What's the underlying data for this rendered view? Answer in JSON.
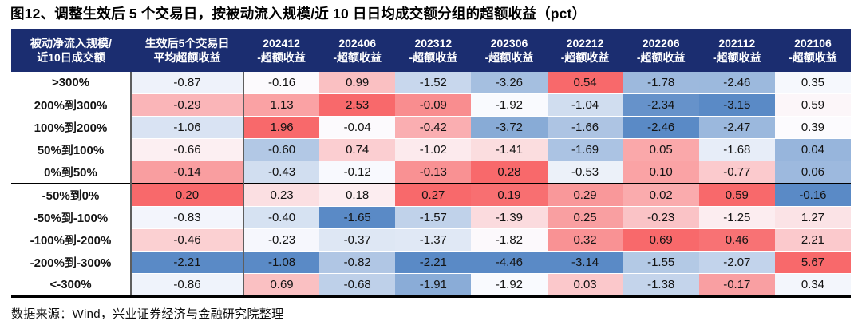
{
  "figure": {
    "title": "图12、调整生效后 5 个交易日，按被动流入规模/近 10 日日均成交额分组的超额收益（pct）",
    "source": "数据来源：Wind，兴业证券经济与金融研究院整理"
  },
  "colors": {
    "header_bg": "#1B2D70",
    "header_text": "#FFFFFF",
    "heatmap_min_color": "#5A8AC6",
    "heatmap_mid_color": "#FCFCFF",
    "heatmap_max_color": "#F8696B",
    "divider_color": "#000000",
    "title_rule_color": "#B5B5B5"
  },
  "chart_data": {
    "type": "heatmap",
    "title": "调整生效后5个交易日，按被动流入规模/近10日日均成交额分组的超额收益（pct）",
    "row_header": {
      "line1": "被动净流入规模/",
      "line2": "近10日成交额"
    },
    "columns": [
      {
        "line1": "生效后5个交易日",
        "line2": "平均超额收益"
      },
      {
        "line1": "202412",
        "line2": "-超额收益"
      },
      {
        "line1": "202406",
        "line2": "-超额收益"
      },
      {
        "line1": "202312",
        "line2": "-超额收益"
      },
      {
        "line1": "202306",
        "line2": "-超额收益"
      },
      {
        "line1": "202212",
        "line2": "-超额收益"
      },
      {
        "line1": "202206",
        "line2": "-超额收益"
      },
      {
        "line1": "202112",
        "line2": "-超额收益"
      },
      {
        "line1": "202106",
        "line2": "-超额收益"
      }
    ],
    "rows": [
      {
        "label": ">300%",
        "values": [
          -0.87,
          -0.16,
          0.99,
          -1.52,
          -3.26,
          0.54,
          -1.78,
          -2.46,
          0.35
        ]
      },
      {
        "label": "200%到300%",
        "values": [
          -0.29,
          1.13,
          2.53,
          -0.09,
          -1.92,
          -1.04,
          -2.34,
          -3.15,
          0.59
        ]
      },
      {
        "label": "100%到200%",
        "values": [
          -1.06,
          1.96,
          -0.04,
          -0.42,
          -3.72,
          -1.66,
          -2.46,
          -2.47,
          0.39
        ]
      },
      {
        "label": "50%到100%",
        "values": [
          -0.66,
          -0.6,
          0.74,
          -1.02,
          -1.41,
          -1.69,
          0.05,
          -1.68,
          0.04
        ]
      },
      {
        "label": "0%到50%",
        "values": [
          -0.14,
          -0.43,
          -0.12,
          -0.13,
          0.28,
          -0.53,
          0.1,
          -0.77,
          0.06
        ]
      },
      {
        "label": "-50%到0%",
        "values": [
          0.2,
          0.23,
          0.18,
          0.27,
          0.19,
          0.29,
          0.02,
          0.59,
          -0.16
        ]
      },
      {
        "label": "-50%到-100%",
        "values": [
          -0.83,
          -0.4,
          -1.65,
          -1.57,
          -1.39,
          0.25,
          -0.23,
          -1.25,
          1.27
        ]
      },
      {
        "label": "-100%到-200%",
        "values": [
          -0.46,
          -0.23,
          -0.37,
          -1.37,
          -1.82,
          0.32,
          0.69,
          0.46,
          2.21
        ]
      },
      {
        "label": "-200%到-300%",
        "values": [
          -2.21,
          -1.08,
          -0.82,
          -2.21,
          -4.46,
          -3.14,
          -1.55,
          -2.07,
          5.67
        ]
      },
      {
        "label": "<-300%",
        "values": [
          -0.86,
          0.69,
          -0.68,
          -1.91,
          -1.92,
          0.03,
          -1.38,
          -0.17,
          0.34
        ]
      }
    ],
    "group_divider_before_row_index": 5,
    "value_format": "two_decimals",
    "color_scale": {
      "scope": "per-column",
      "min": "#5A8AC6",
      "mid": "#FCFCFF",
      "max": "#F8696B",
      "midpoint": "50th percentile of column"
    }
  }
}
